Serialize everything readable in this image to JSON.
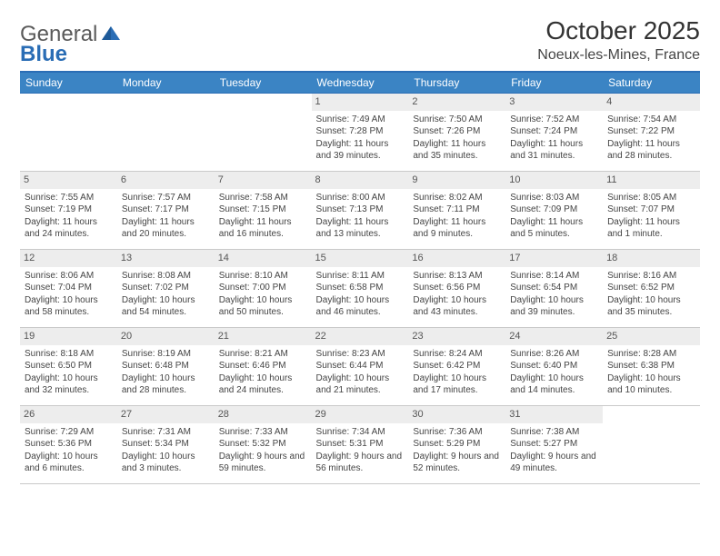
{
  "logo": {
    "text1": "General",
    "text2": "Blue"
  },
  "title": "October 2025",
  "location": "Noeux-les-Mines, France",
  "colors": {
    "header_bg": "#3b84c4",
    "header_text": "#ffffff",
    "row_divider": "#2a6db5",
    "daynum_bg": "#ededed",
    "logo_accent": "#2a6db5"
  },
  "day_headers": [
    "Sunday",
    "Monday",
    "Tuesday",
    "Wednesday",
    "Thursday",
    "Friday",
    "Saturday"
  ],
  "weeks": [
    [
      {
        "n": "",
        "sr": "",
        "ss": "",
        "dl": ""
      },
      {
        "n": "",
        "sr": "",
        "ss": "",
        "dl": ""
      },
      {
        "n": "",
        "sr": "",
        "ss": "",
        "dl": ""
      },
      {
        "n": "1",
        "sr": "Sunrise: 7:49 AM",
        "ss": "Sunset: 7:28 PM",
        "dl": "Daylight: 11 hours and 39 minutes."
      },
      {
        "n": "2",
        "sr": "Sunrise: 7:50 AM",
        "ss": "Sunset: 7:26 PM",
        "dl": "Daylight: 11 hours and 35 minutes."
      },
      {
        "n": "3",
        "sr": "Sunrise: 7:52 AM",
        "ss": "Sunset: 7:24 PM",
        "dl": "Daylight: 11 hours and 31 minutes."
      },
      {
        "n": "4",
        "sr": "Sunrise: 7:54 AM",
        "ss": "Sunset: 7:22 PM",
        "dl": "Daylight: 11 hours and 28 minutes."
      }
    ],
    [
      {
        "n": "5",
        "sr": "Sunrise: 7:55 AM",
        "ss": "Sunset: 7:19 PM",
        "dl": "Daylight: 11 hours and 24 minutes."
      },
      {
        "n": "6",
        "sr": "Sunrise: 7:57 AM",
        "ss": "Sunset: 7:17 PM",
        "dl": "Daylight: 11 hours and 20 minutes."
      },
      {
        "n": "7",
        "sr": "Sunrise: 7:58 AM",
        "ss": "Sunset: 7:15 PM",
        "dl": "Daylight: 11 hours and 16 minutes."
      },
      {
        "n": "8",
        "sr": "Sunrise: 8:00 AM",
        "ss": "Sunset: 7:13 PM",
        "dl": "Daylight: 11 hours and 13 minutes."
      },
      {
        "n": "9",
        "sr": "Sunrise: 8:02 AM",
        "ss": "Sunset: 7:11 PM",
        "dl": "Daylight: 11 hours and 9 minutes."
      },
      {
        "n": "10",
        "sr": "Sunrise: 8:03 AM",
        "ss": "Sunset: 7:09 PM",
        "dl": "Daylight: 11 hours and 5 minutes."
      },
      {
        "n": "11",
        "sr": "Sunrise: 8:05 AM",
        "ss": "Sunset: 7:07 PM",
        "dl": "Daylight: 11 hours and 1 minute."
      }
    ],
    [
      {
        "n": "12",
        "sr": "Sunrise: 8:06 AM",
        "ss": "Sunset: 7:04 PM",
        "dl": "Daylight: 10 hours and 58 minutes."
      },
      {
        "n": "13",
        "sr": "Sunrise: 8:08 AM",
        "ss": "Sunset: 7:02 PM",
        "dl": "Daylight: 10 hours and 54 minutes."
      },
      {
        "n": "14",
        "sr": "Sunrise: 8:10 AM",
        "ss": "Sunset: 7:00 PM",
        "dl": "Daylight: 10 hours and 50 minutes."
      },
      {
        "n": "15",
        "sr": "Sunrise: 8:11 AM",
        "ss": "Sunset: 6:58 PM",
        "dl": "Daylight: 10 hours and 46 minutes."
      },
      {
        "n": "16",
        "sr": "Sunrise: 8:13 AM",
        "ss": "Sunset: 6:56 PM",
        "dl": "Daylight: 10 hours and 43 minutes."
      },
      {
        "n": "17",
        "sr": "Sunrise: 8:14 AM",
        "ss": "Sunset: 6:54 PM",
        "dl": "Daylight: 10 hours and 39 minutes."
      },
      {
        "n": "18",
        "sr": "Sunrise: 8:16 AM",
        "ss": "Sunset: 6:52 PM",
        "dl": "Daylight: 10 hours and 35 minutes."
      }
    ],
    [
      {
        "n": "19",
        "sr": "Sunrise: 8:18 AM",
        "ss": "Sunset: 6:50 PM",
        "dl": "Daylight: 10 hours and 32 minutes."
      },
      {
        "n": "20",
        "sr": "Sunrise: 8:19 AM",
        "ss": "Sunset: 6:48 PM",
        "dl": "Daylight: 10 hours and 28 minutes."
      },
      {
        "n": "21",
        "sr": "Sunrise: 8:21 AM",
        "ss": "Sunset: 6:46 PM",
        "dl": "Daylight: 10 hours and 24 minutes."
      },
      {
        "n": "22",
        "sr": "Sunrise: 8:23 AM",
        "ss": "Sunset: 6:44 PM",
        "dl": "Daylight: 10 hours and 21 minutes."
      },
      {
        "n": "23",
        "sr": "Sunrise: 8:24 AM",
        "ss": "Sunset: 6:42 PM",
        "dl": "Daylight: 10 hours and 17 minutes."
      },
      {
        "n": "24",
        "sr": "Sunrise: 8:26 AM",
        "ss": "Sunset: 6:40 PM",
        "dl": "Daylight: 10 hours and 14 minutes."
      },
      {
        "n": "25",
        "sr": "Sunrise: 8:28 AM",
        "ss": "Sunset: 6:38 PM",
        "dl": "Daylight: 10 hours and 10 minutes."
      }
    ],
    [
      {
        "n": "26",
        "sr": "Sunrise: 7:29 AM",
        "ss": "Sunset: 5:36 PM",
        "dl": "Daylight: 10 hours and 6 minutes."
      },
      {
        "n": "27",
        "sr": "Sunrise: 7:31 AM",
        "ss": "Sunset: 5:34 PM",
        "dl": "Daylight: 10 hours and 3 minutes."
      },
      {
        "n": "28",
        "sr": "Sunrise: 7:33 AM",
        "ss": "Sunset: 5:32 PM",
        "dl": "Daylight: 9 hours and 59 minutes."
      },
      {
        "n": "29",
        "sr": "Sunrise: 7:34 AM",
        "ss": "Sunset: 5:31 PM",
        "dl": "Daylight: 9 hours and 56 minutes."
      },
      {
        "n": "30",
        "sr": "Sunrise: 7:36 AM",
        "ss": "Sunset: 5:29 PM",
        "dl": "Daylight: 9 hours and 52 minutes."
      },
      {
        "n": "31",
        "sr": "Sunrise: 7:38 AM",
        "ss": "Sunset: 5:27 PM",
        "dl": "Daylight: 9 hours and 49 minutes."
      },
      {
        "n": "",
        "sr": "",
        "ss": "",
        "dl": ""
      }
    ]
  ]
}
